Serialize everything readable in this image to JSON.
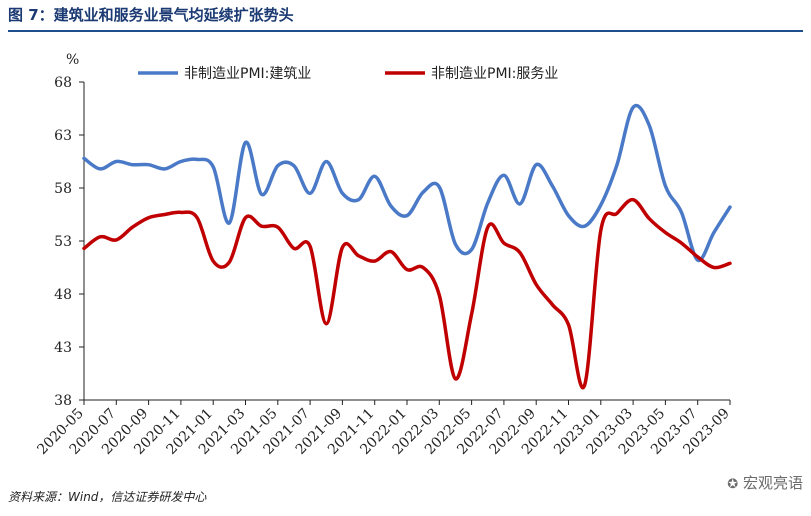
{
  "header": {
    "title": "图 7：建筑业和服务业景气均延续扩张势头"
  },
  "footer": {
    "source": "资料来源：Wind，信达证券研发中心",
    "watermark": "宏观亮语"
  },
  "chart_data": {
    "type": "line",
    "title": "图 7：建筑业和服务业景气均延续扩张势头",
    "ylabel": "%",
    "xlabel": "",
    "ylim": [
      38,
      68
    ],
    "yticks": [
      38,
      43,
      48,
      53,
      58,
      63,
      68
    ],
    "grid": false,
    "legend_position": "top",
    "x": [
      "2020-05",
      "2020-06",
      "2020-07",
      "2020-08",
      "2020-09",
      "2020-10",
      "2020-11",
      "2020-12",
      "2021-01",
      "2021-02",
      "2021-03",
      "2021-04",
      "2021-05",
      "2021-06",
      "2021-07",
      "2021-08",
      "2021-09",
      "2021-10",
      "2021-11",
      "2021-12",
      "2022-01",
      "2022-02",
      "2022-03",
      "2022-04",
      "2022-05",
      "2022-06",
      "2022-07",
      "2022-08",
      "2022-09",
      "2022-10",
      "2022-11",
      "2022-12",
      "2023-01",
      "2023-02",
      "2023-03",
      "2023-04",
      "2023-05",
      "2023-06",
      "2023-07",
      "2023-08",
      "2023-09"
    ],
    "xtick_labels": [
      "2020-05",
      "2020-07",
      "2020-09",
      "2020-11",
      "2021-01",
      "2021-03",
      "2021-05",
      "2021-07",
      "2021-09",
      "2021-11",
      "2022-01",
      "2022-03",
      "2022-05",
      "2022-07",
      "2022-09",
      "2022-11",
      "2023-01",
      "2023-03",
      "2023-05",
      "2023-07",
      "2023-09"
    ],
    "series": [
      {
        "name": "非制造业PMI:建筑业",
        "color": "#4a7ac7",
        "values": [
          60.8,
          59.8,
          60.5,
          60.2,
          60.2,
          59.8,
          60.5,
          60.7,
          60.0,
          54.7,
          62.3,
          57.4,
          60.1,
          60.1,
          57.5,
          60.5,
          57.5,
          56.9,
          59.1,
          56.3,
          55.4,
          57.6,
          58.1,
          52.7,
          52.2,
          56.6,
          59.2,
          56.5,
          60.2,
          58.2,
          55.4,
          54.4,
          56.4,
          60.2,
          65.6,
          63.9,
          58.2,
          55.7,
          51.2,
          53.8,
          56.2
        ]
      },
      {
        "name": "非制造业PMI:服务业",
        "color": "#c00000",
        "values": [
          52.3,
          53.4,
          53.1,
          54.3,
          55.2,
          55.5,
          55.7,
          55.2,
          51.1,
          51.0,
          55.2,
          54.4,
          54.3,
          52.3,
          52.5,
          45.2,
          52.4,
          51.6,
          51.1,
          52.0,
          50.3,
          50.5,
          47.9,
          40.0,
          46.1,
          54.3,
          52.8,
          51.9,
          48.9,
          47.0,
          45.1,
          39.4,
          54.0,
          55.6,
          56.9,
          55.1,
          53.8,
          52.8,
          51.5,
          50.5,
          50.9
        ]
      }
    ]
  }
}
